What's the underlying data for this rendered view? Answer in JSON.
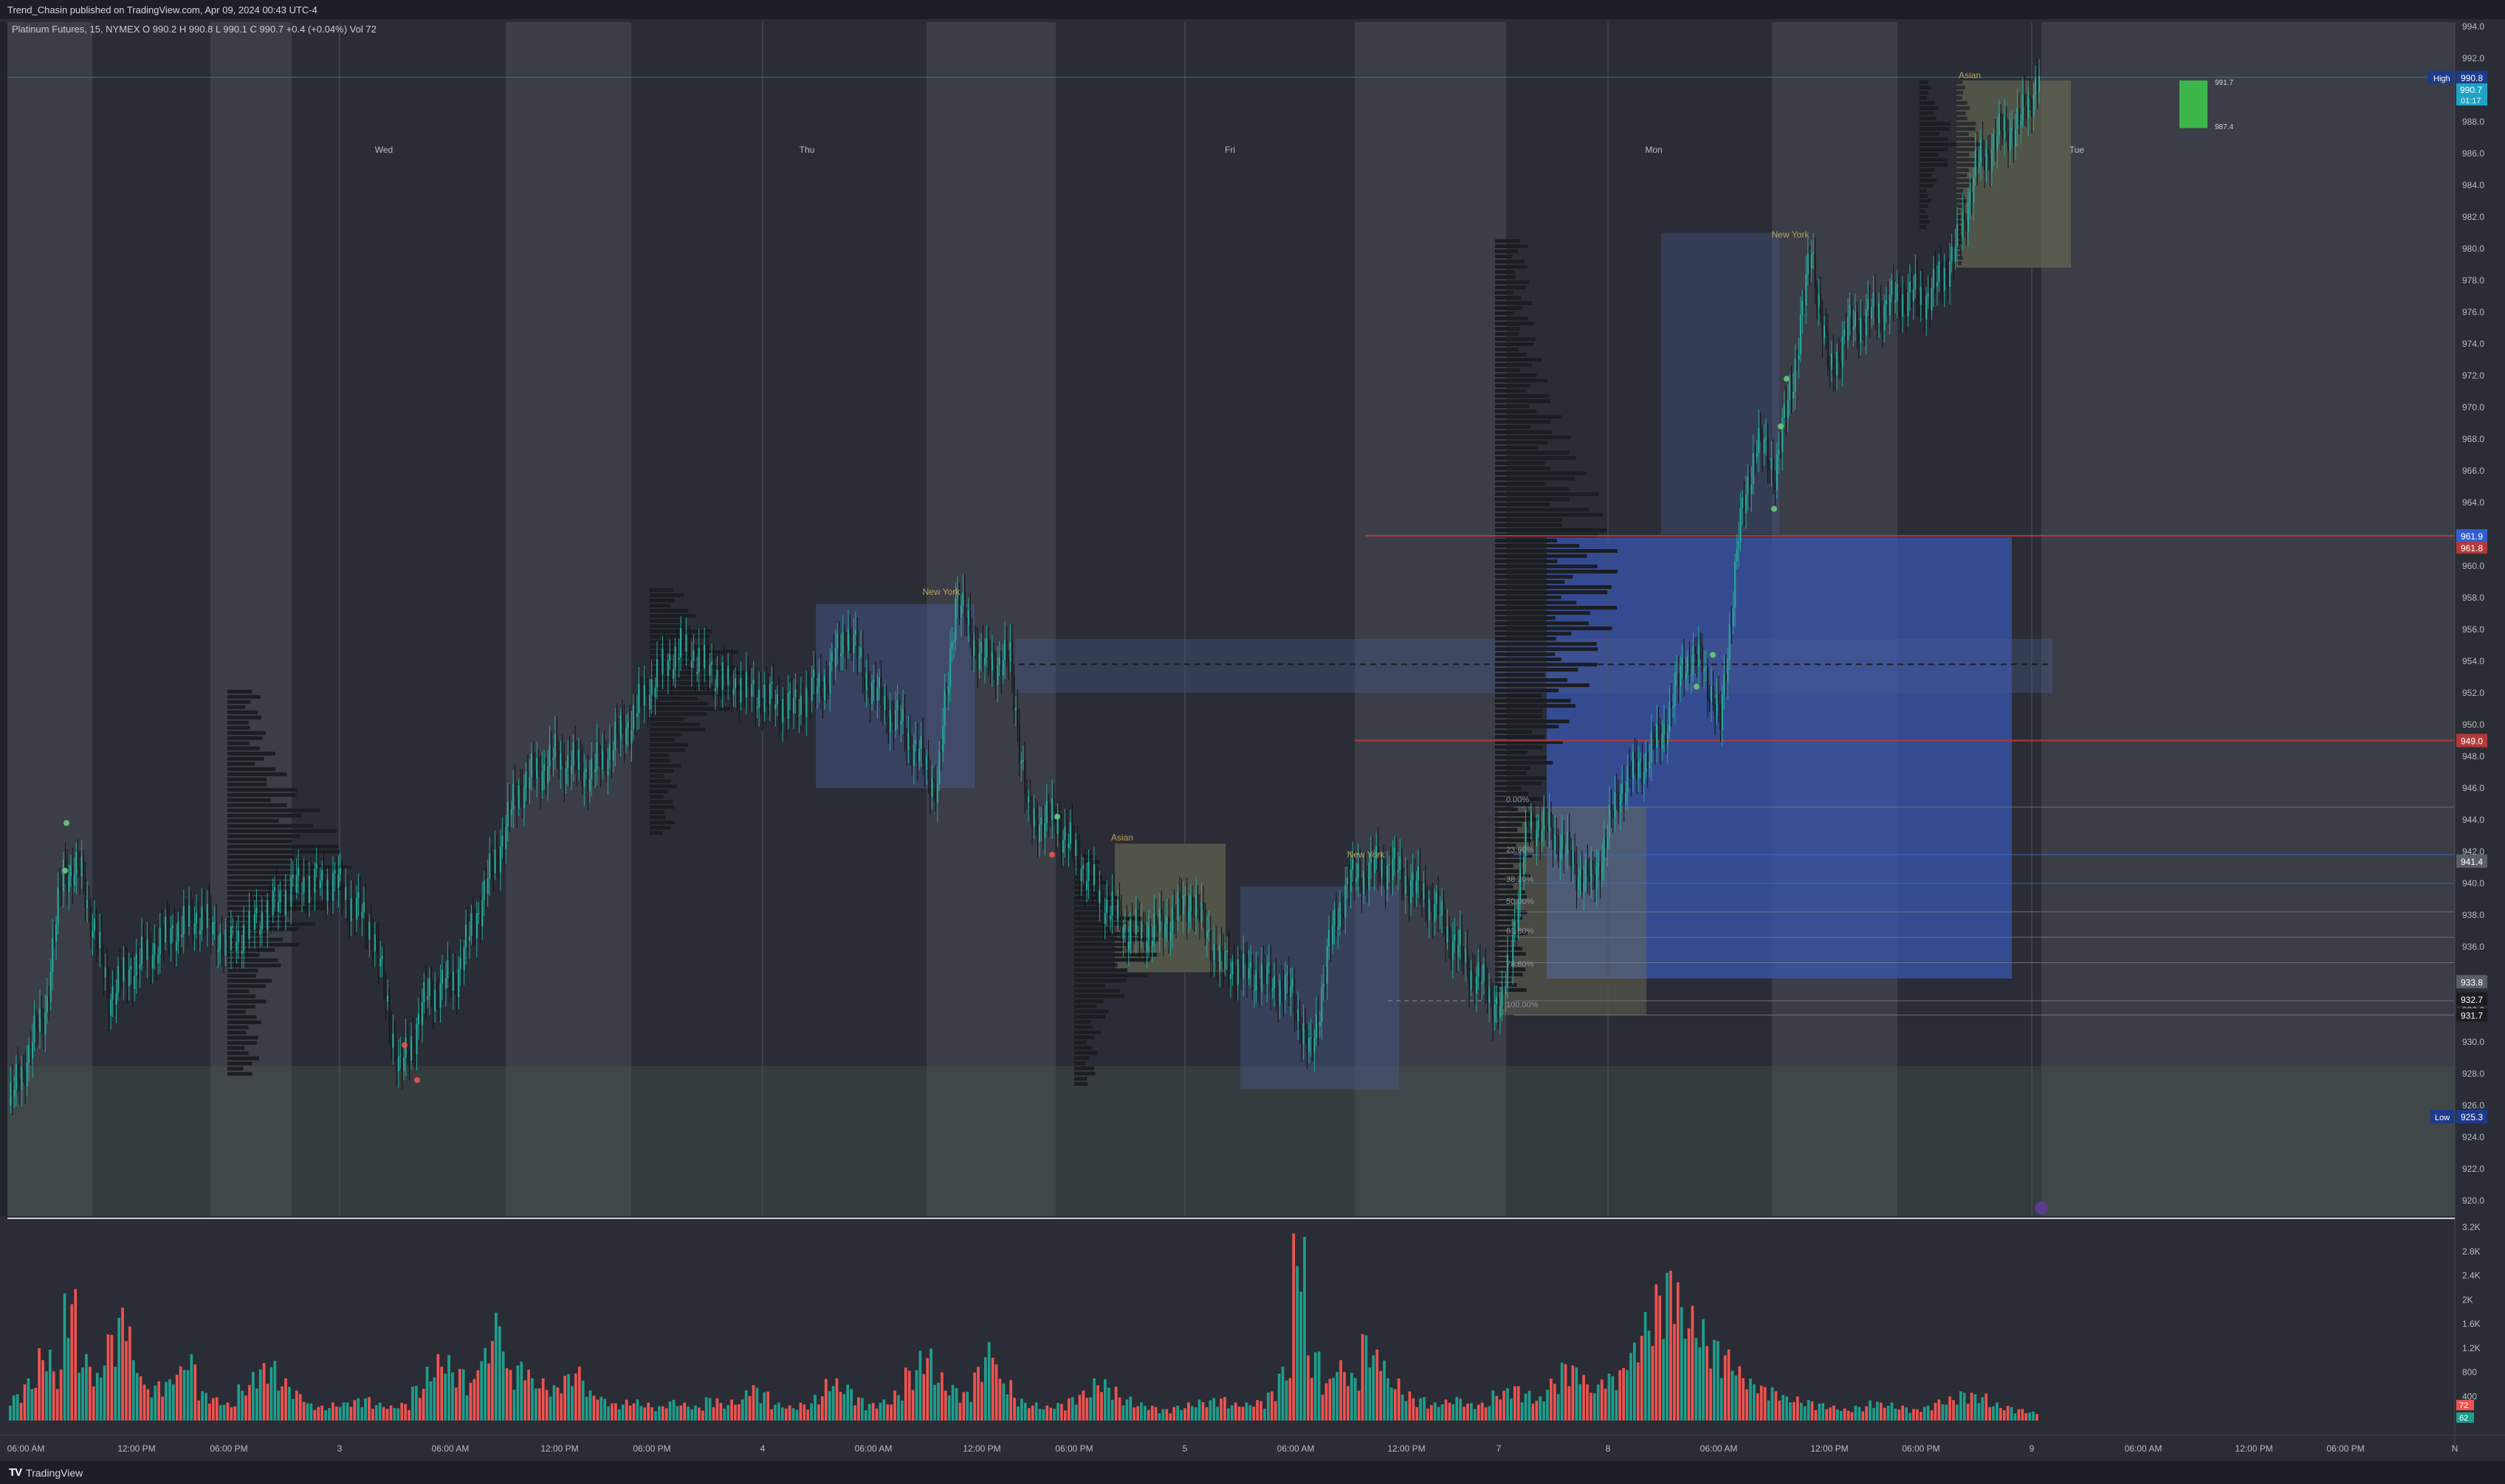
{
  "header": {
    "published": "Trend_Chasin published on TradingView.com, Apr 09, 2024 00:43 UTC-4",
    "legend": "Platinum Futures, 15, NYMEX  O 990.2  H 990.8  L 990.1  C 990.7  +0.4 (+0.04%)  Vol 72"
  },
  "footer": {
    "brand": "TradingView",
    "logo": "tradingview-logo-icon"
  },
  "colors": {
    "background": "#2a2d35",
    "session_band": "#3b3e47",
    "up_candle": "#26a69a",
    "down_candle": "#1a1c21",
    "up_volume": "#1e9e8c",
    "down_volume": "#ef5350",
    "resistance_line": "#b23a3a",
    "high_label": "#1e3a8a",
    "blue_zone": "#3a56b0"
  },
  "days": [
    "Wed",
    "Thu",
    "Fri",
    "Mon",
    "Tue"
  ],
  "sessions": [
    "New York",
    "New York",
    "New York",
    "Asian",
    "Asian"
  ],
  "fib_levels": [
    "0.00%",
    "23.60%",
    "38.20%",
    "50.00%",
    "61.80%",
    "78.60%",
    "100.00%"
  ],
  "price_labels": {
    "high_text": "High",
    "high": "990.8",
    "current": "990.7",
    "countdown": "01:17",
    "l1": "961.9",
    "l2": "961.8",
    "l3": "949.0",
    "l4": "941.4",
    "l5": "933.8",
    "l6": "932.7",
    "l7": "931.7",
    "low_text": "Low",
    "low": "925.3",
    "vol_up": "72",
    "vol_down": "62",
    "box_top": "991.7",
    "box_bottom": "987.4"
  },
  "time_axis": [
    "06:00 AM",
    "12:00 PM",
    "06:00 PM",
    "3",
    "06:00 AM",
    "12:00 PM",
    "06:00 PM",
    "4",
    "06:00 AM",
    "12:00 PM",
    "06:00 PM",
    "5",
    "06:00 AM",
    "12:00 PM",
    "7",
    "8",
    "06:00 AM",
    "12:00 PM",
    "06:00 PM",
    "9",
    "06:00 AM",
    "12:00 PM",
    "06:00 PM",
    "N"
  ],
  "price_axis": {
    "ticks": [
      "994.0",
      "992.0",
      "990.0",
      "988.0",
      "986.0",
      "984.0",
      "982.0",
      "980.0",
      "978.0",
      "976.0",
      "974.0",
      "972.0",
      "970.0",
      "968.0",
      "966.0",
      "964.0",
      "962.0",
      "960.0",
      "958.0",
      "956.0",
      "954.0",
      "952.0",
      "950.0",
      "948.0",
      "946.0",
      "944.0",
      "942.0",
      "940.0",
      "938.0",
      "936.0",
      "934.0",
      "932.0",
      "930.0",
      "928.0",
      "926.0",
      "924.0",
      "922.0",
      "920.0"
    ]
  },
  "volume_axis": {
    "ticks": [
      "3.2K",
      "2.8K",
      "2.4K",
      "2K",
      "1.6K",
      "1.2K",
      "800",
      "400"
    ]
  },
  "chart_data": {
    "type": "candlestick",
    "symbol": "Platinum Futures",
    "interval": "15",
    "exchange": "NYMEX",
    "ylim": [
      919,
      995
    ],
    "volume_ylim": [
      0,
      3300
    ],
    "key_levels": [
      990.8,
      961.9,
      961.8,
      949.0,
      941.4,
      933.8,
      932.7,
      931.7,
      925.3
    ],
    "anchors": [
      [
        0,
        926
      ],
      [
        10,
        929
      ],
      [
        20,
        932
      ],
      [
        30,
        941
      ],
      [
        40,
        940.5
      ],
      [
        55,
        933
      ],
      [
        70,
        935
      ],
      [
        90,
        937
      ],
      [
        105,
        938
      ],
      [
        120,
        936
      ],
      [
        140,
        938
      ],
      [
        160,
        940
      ],
      [
        180,
        940
      ],
      [
        200,
        937
      ],
      [
        215,
        928
      ],
      [
        230,
        933
      ],
      [
        245,
        934
      ],
      [
        260,
        939
      ],
      [
        280,
        946
      ],
      [
        300,
        948
      ],
      [
        320,
        947
      ],
      [
        340,
        950
      ],
      [
        355,
        953
      ],
      [
        370,
        955
      ],
      [
        390,
        953
      ],
      [
        410,
        952
      ],
      [
        430,
        951
      ],
      [
        450,
        953
      ],
      [
        460,
        956
      ],
      [
        475,
        952
      ],
      [
        490,
        950
      ],
      [
        510,
        946
      ],
      [
        520,
        958
      ],
      [
        535,
        954
      ],
      [
        550,
        954
      ],
      [
        560,
        944
      ],
      [
        575,
        944
      ],
      [
        590,
        941
      ],
      [
        600,
        939
      ],
      [
        615,
        937
      ],
      [
        630,
        937
      ],
      [
        640,
        938
      ],
      [
        650,
        939
      ],
      [
        665,
        935
      ],
      [
        690,
        934
      ],
      [
        705,
        933
      ],
      [
        715,
        929
      ],
      [
        725,
        936
      ],
      [
        735,
        940
      ],
      [
        750,
        941
      ],
      [
        760,
        941
      ],
      [
        780,
        939
      ],
      [
        800,
        935
      ],
      [
        820,
        932
      ],
      [
        835,
        944
      ],
      [
        850,
        943
      ],
      [
        860,
        941
      ],
      [
        870,
        940
      ],
      [
        885,
        946
      ],
      [
        900,
        948
      ],
      [
        910,
        950
      ],
      [
        920,
        954
      ],
      [
        930,
        954
      ],
      [
        940,
        950
      ],
      [
        950,
        962
      ],
      [
        960,
        968
      ],
      [
        970,
        966
      ],
      [
        980,
        972
      ],
      [
        990,
        980
      ],
      [
        1000,
        972
      ],
      [
        1010,
        975
      ],
      [
        1025,
        976
      ],
      [
        1040,
        977
      ],
      [
        1055,
        977
      ],
      [
        1070,
        980
      ],
      [
        1080,
        985
      ],
      [
        1092,
        987
      ],
      [
        1105,
        988
      ],
      [
        1115,
        991
      ]
    ],
    "volume_samples": [
      450,
      700,
      1200,
      900,
      2200,
      1100,
      800,
      1500,
      1900,
      1000,
      600,
      700,
      900,
      1100,
      500,
      400,
      300,
      600,
      900,
      1000,
      700,
      500,
      300,
      250,
      300,
      350,
      400,
      300,
      250,
      300,
      600,
      900,
      1100,
      900,
      700,
      1200,
      1800,
      900,
      1000,
      700,
      600,
      800,
      900,
      500,
      400,
      300,
      350,
      300,
      250,
      350,
      300,
      250,
      400,
      300,
      350,
      600,
      500,
      300,
      250,
      300,
      450,
      700,
      600,
      400,
      300,
      350,
      500,
      900,
      1200,
      800,
      600,
      500,
      900,
      1300,
      700,
      400,
      300,
      250,
      300,
      400,
      500,
      700,
      600,
      400,
      300,
      250,
      200,
      250,
      300,
      350,
      400,
      300,
      300,
      350,
      500,
      900,
      3100,
      1200,
      700,
      1000,
      800,
      1500,
      1200,
      700,
      500,
      400,
      300,
      350,
      400,
      300,
      300,
      500,
      600,
      500,
      400,
      700,
      1000,
      900,
      600,
      800,
      900,
      1300,
      1800,
      2300,
      2600,
      1900,
      1700,
      1400,
      1200,
      900,
      700,
      600,
      500,
      400,
      350,
      300,
      250,
      200,
      250,
      350,
      300,
      250,
      200,
      250,
      350,
      400,
      500,
      450,
      300,
      250,
      200,
      150
    ]
  }
}
